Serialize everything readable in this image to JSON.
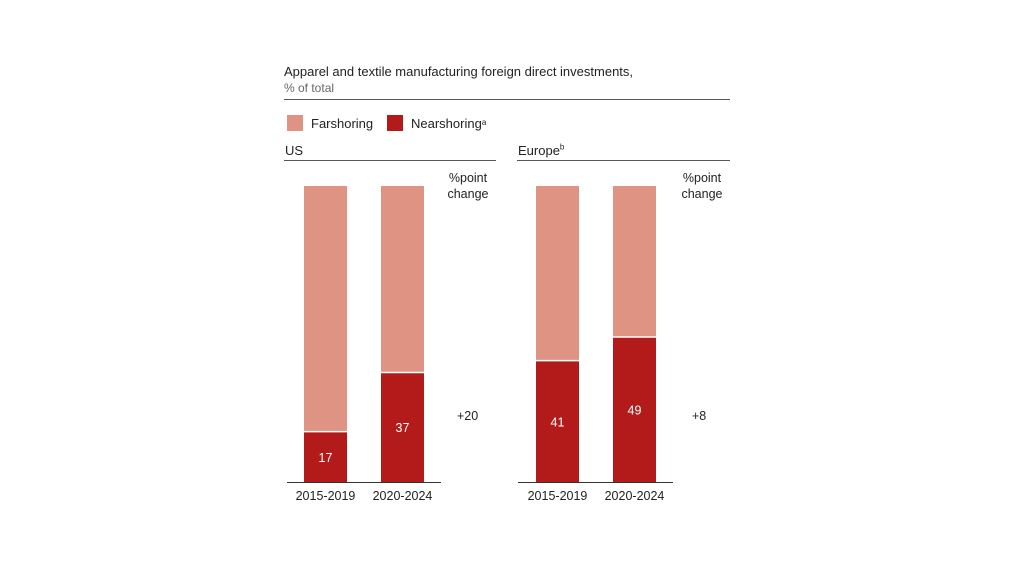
{
  "title": "Apparel and textile manufacturing foreign direct investments,",
  "subtitle": "% of total",
  "colors": {
    "farshoring": "#de9383",
    "nearshoring": "#b31b1b"
  },
  "legend": {
    "farshoring": "Farshoring",
    "nearshoring": "Nearshoring",
    "nearshoring_sup": "a"
  },
  "panels": [
    {
      "name": "US",
      "sup": "",
      "change_label_1": "%point",
      "change_label_2": "change",
      "change": "+20"
    },
    {
      "name": "Europe",
      "sup": "b",
      "change_label_1": "%point",
      "change_label_2": "change",
      "change": "+8"
    }
  ],
  "chart_data": [
    {
      "type": "bar",
      "stacked": true,
      "title": "US",
      "categories": [
        "2015-2019",
        "2020-2024"
      ],
      "series": [
        {
          "name": "Nearshoring",
          "values": [
            17,
            37
          ]
        },
        {
          "name": "Farshoring",
          "values": [
            83,
            63
          ]
        }
      ],
      "labels": [
        "17",
        "37"
      ],
      "ylim": [
        0,
        100
      ],
      "ylabel": "% of total"
    },
    {
      "type": "bar",
      "stacked": true,
      "title": "Europe",
      "categories": [
        "2015-2019",
        "2020-2024"
      ],
      "series": [
        {
          "name": "Nearshoring",
          "values": [
            41,
            49
          ]
        },
        {
          "name": "Farshoring",
          "values": [
            59,
            51
          ]
        }
      ],
      "labels": [
        "41",
        "49"
      ],
      "ylim": [
        0,
        100
      ],
      "ylabel": "% of total"
    }
  ]
}
